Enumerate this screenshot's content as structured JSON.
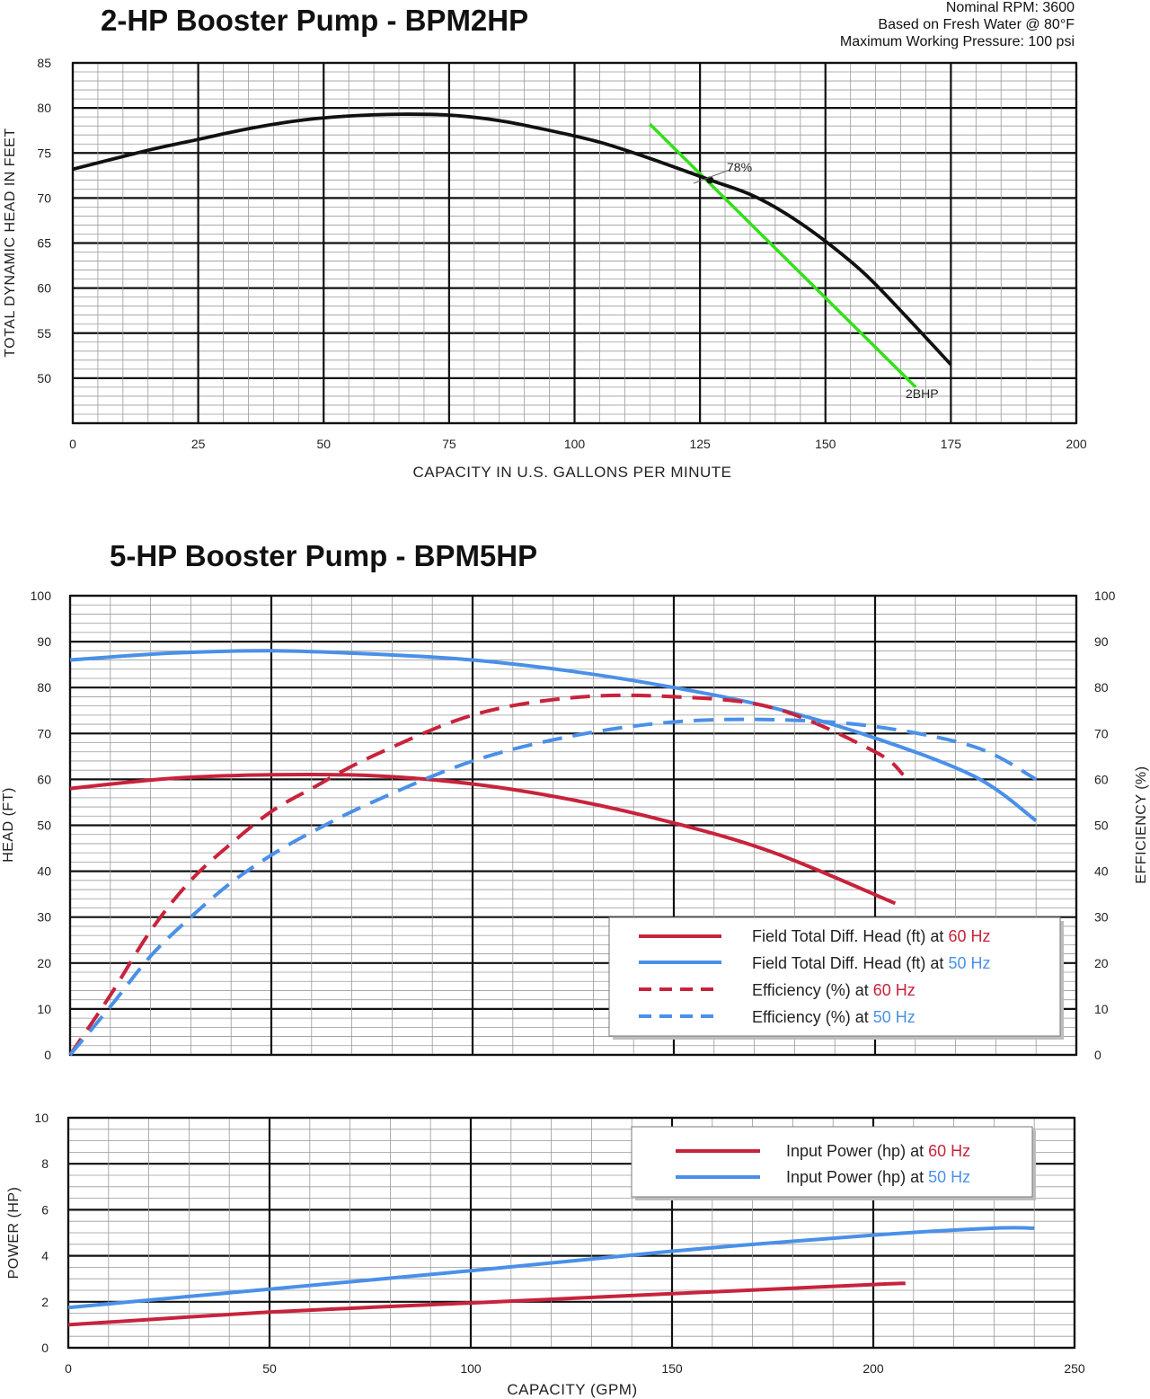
{
  "chart_data": [
    {
      "type": "line",
      "title": "2-HP Booster Pump - BPM2HP",
      "notes": [
        "Nominal RPM:  3600",
        "Based on Fresh Water @ 80°F",
        "Maximum Working Pressure:  100 psi"
      ],
      "xlabel": "CAPACITY IN U.S. GALLONS PER MINUTE",
      "ylabel": "TOTAL DYNAMIC HEAD IN FEET",
      "xlim": [
        0,
        200
      ],
      "ylim": [
        45,
        85
      ],
      "xticks": [
        "0",
        "25",
        "50",
        "75",
        "100",
        "125",
        "150",
        "175",
        "200"
      ],
      "yticks": [
        "50",
        "55",
        "60",
        "65",
        "70",
        "75",
        "80",
        "85"
      ],
      "grid": true,
      "series": [
        {
          "x": [
            0,
            15,
            25,
            35,
            45,
            55,
            65,
            75,
            85,
            95,
            105,
            115,
            127,
            135,
            142,
            150,
            158,
            166,
            175
          ],
          "values": [
            73.2,
            75.3,
            76.5,
            77.7,
            78.6,
            79.1,
            79.3,
            79.2,
            78.6,
            77.5,
            76.2,
            74.4,
            72.0,
            70.4,
            68.3,
            65.2,
            61.5,
            56.9,
            51.5
          ],
          "color": "#111111"
        },
        {
          "name": "2BHP",
          "x": [
            115,
            168
          ],
          "values": [
            78.2,
            49.0
          ],
          "color": "#33e01a"
        }
      ],
      "annotations": [
        {
          "text": "78%",
          "x": 127,
          "y": 72.0
        }
      ]
    },
    {
      "type": "line",
      "title": "5-HP Booster Pump - BPM5HP",
      "ylabel": "HEAD (FT)",
      "y2label": "EFFICIENCY (%)",
      "xlim": [
        0,
        250
      ],
      "ylim": [
        0,
        100
      ],
      "yticks": [
        "0",
        "10",
        "20",
        "30",
        "40",
        "50",
        "60",
        "70",
        "80",
        "90",
        "100"
      ],
      "grid": true,
      "legend": "bottom-right",
      "series": [
        {
          "name": "Field Total Diff. Head (ft) at 60 Hz",
          "label_main": "Field Total Diff. Head (ft) at",
          "label_hz": "60 Hz",
          "x": [
            0,
            25,
            50,
            75,
            100,
            125,
            150,
            175,
            205
          ],
          "values": [
            58,
            60.2,
            61,
            60.8,
            59,
            55.5,
            50.5,
            44,
            33
          ],
          "color": "#c8233c",
          "dash": false
        },
        {
          "name": "Field Total Diff. Head (ft) at 50 Hz",
          "label_main": "Field Total Diff. Head (ft) at",
          "label_hz": "50 Hz",
          "x": [
            0,
            25,
            50,
            75,
            100,
            125,
            150,
            175,
            200,
            225,
            240
          ],
          "values": [
            86,
            87.5,
            88,
            87.3,
            86,
            83.5,
            80,
            75.5,
            69,
            60.5,
            51
          ],
          "color": "#4a90e8",
          "dash": false
        },
        {
          "name": "Efficiency (%) at 60 Hz",
          "label_main": "Efficiency (%) at",
          "label_hz": "60 Hz",
          "x": [
            0,
            10,
            20,
            30,
            40,
            50,
            60,
            75,
            100,
            125,
            150,
            175,
            200,
            207
          ],
          "values": [
            0,
            13,
            27,
            38,
            46,
            53,
            58,
            65,
            74,
            77.8,
            78,
            75.5,
            66,
            61
          ],
          "color": "#c8233c",
          "dash": true
        },
        {
          "name": "Efficiency (%) at 50 Hz",
          "label_main": "Efficiency (%) at",
          "label_hz": "50 Hz",
          "x": [
            0,
            10,
            20,
            30,
            40,
            50,
            60,
            75,
            100,
            125,
            150,
            175,
            200,
            225,
            240
          ],
          "values": [
            0,
            10.5,
            21.5,
            30,
            37.5,
            43.5,
            48.5,
            55,
            64,
            69.5,
            72.5,
            73,
            71.5,
            67,
            60
          ],
          "color": "#4a90e8",
          "dash": true
        }
      ]
    },
    {
      "type": "line",
      "xlabel": "CAPACITY (GPM)",
      "ylabel": "POWER (HP)",
      "xlim": [
        0,
        250
      ],
      "ylim": [
        0,
        10
      ],
      "xticks": [
        "0",
        "50",
        "100",
        "150",
        "200",
        "250"
      ],
      "yticks": [
        "0",
        "2",
        "4",
        "6",
        "8",
        "10"
      ],
      "grid": true,
      "legend": "top-right",
      "series": [
        {
          "name": "Input Power (hp) at 60 Hz",
          "label_main": "Input Power (hp) at",
          "label_hz": "60 Hz",
          "x": [
            0,
            50,
            100,
            150,
            200,
            208
          ],
          "values": [
            1,
            1.55,
            1.95,
            2.35,
            2.75,
            2.8
          ],
          "color": "#c8233c"
        },
        {
          "name": "Input Power (hp) at 50 Hz",
          "label_main": "Input Power (hp) at",
          "label_hz": "50 Hz",
          "x": [
            0,
            50,
            100,
            150,
            200,
            230,
            240
          ],
          "values": [
            1.75,
            2.55,
            3.35,
            4.2,
            4.9,
            5.2,
            5.2
          ],
          "color": "#4a90e8"
        }
      ]
    }
  ]
}
